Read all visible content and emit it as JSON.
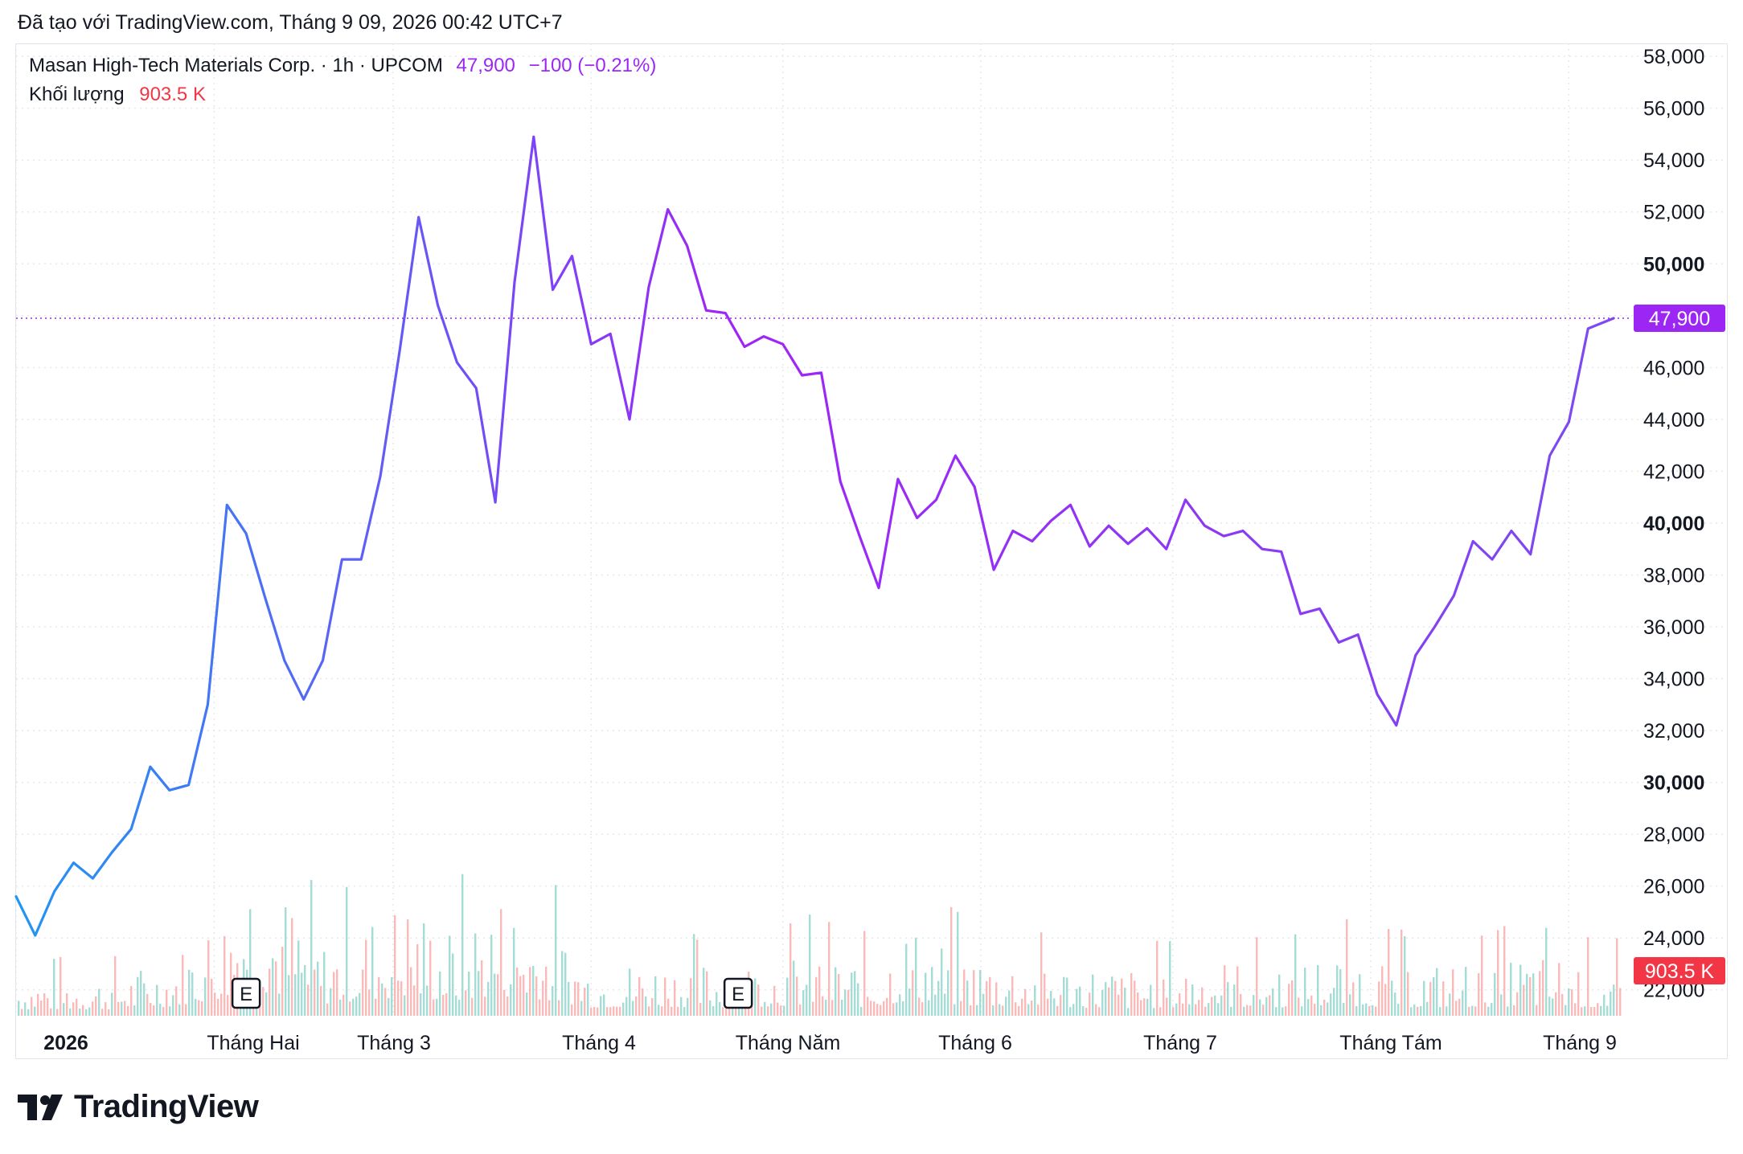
{
  "caption": "Đã tạo với TradingView.com, Tháng 9 09, 2026 00:42 UTC+7",
  "legend": {
    "symbol": "Masan High-Tech Materials Corp. · 1h · UPCOM",
    "last_price": "47,900",
    "change": "−100 (−0.21%)",
    "volume_label": "Khối lượng",
    "volume_value": "903.5 K"
  },
  "brand": "TradingView",
  "colors": {
    "line_start": "#2196f3",
    "line_mid": "#7b4bf0",
    "line_peak": "#a024f7",
    "price_badge": "#9c27f5",
    "volume_badge": "#f23645",
    "volume_up": "#8fd3cc",
    "volume_down": "#f7a9a9"
  },
  "chart_data": {
    "type": "line",
    "series": [
      {
        "x": [
          "2026-01-01",
          "2026-01-04",
          "2026-01-07",
          "2026-01-10",
          "2026-01-13",
          "2026-01-16",
          "2026-01-19",
          "2026-01-22",
          "2026-01-25",
          "2026-01-28",
          "2026-01-31",
          "2026-02-03",
          "2026-02-06",
          "2026-02-09",
          "2026-02-12",
          "2026-02-15",
          "2026-02-18",
          "2026-02-21",
          "2026-02-24",
          "2026-02-27",
          "2026-03-02",
          "2026-03-05",
          "2026-03-08",
          "2026-03-11",
          "2026-03-14",
          "2026-03-17",
          "2026-03-20",
          "2026-03-23",
          "2026-03-26",
          "2026-03-29",
          "2026-04-01",
          "2026-04-04",
          "2026-04-07",
          "2026-04-10",
          "2026-04-13",
          "2026-04-16",
          "2026-04-19",
          "2026-04-22",
          "2026-04-25",
          "2026-04-28",
          "2026-05-01",
          "2026-05-04",
          "2026-05-07",
          "2026-05-10",
          "2026-05-13",
          "2026-05-16",
          "2026-05-19",
          "2026-05-22",
          "2026-05-25",
          "2026-05-28",
          "2026-05-31",
          "2026-06-03",
          "2026-06-06",
          "2026-06-09",
          "2026-06-12",
          "2026-06-15",
          "2026-06-18",
          "2026-06-21",
          "2026-06-24",
          "2026-06-27",
          "2026-06-30",
          "2026-07-03",
          "2026-07-06",
          "2026-07-09",
          "2026-07-12",
          "2026-07-15",
          "2026-07-18",
          "2026-07-21",
          "2026-07-24",
          "2026-07-27",
          "2026-07-30",
          "2026-08-02",
          "2026-08-05",
          "2026-08-08",
          "2026-08-11",
          "2026-08-14",
          "2026-08-17",
          "2026-08-20",
          "2026-08-23",
          "2026-08-26",
          "2026-08-29",
          "2026-09-01",
          "2026-09-04",
          "2026-09-08"
        ],
        "y": [
          25600,
          24100,
          25800,
          26900,
          26300,
          27300,
          28200,
          30600,
          29700,
          29900,
          33000,
          40700,
          39600,
          37100,
          34700,
          33200,
          34700,
          38600,
          38600,
          41800,
          46600,
          51800,
          48400,
          46200,
          45200,
          40800,
          49300,
          54900,
          49000,
          50300,
          46900,
          47300,
          44000,
          49100,
          52100,
          50700,
          48200,
          48100,
          46800,
          47200,
          46900,
          45700,
          45800,
          41600,
          39500,
          37500,
          41700,
          40200,
          40900,
          42600,
          41400,
          38200,
          39700,
          39300,
          40100,
          40700,
          39100,
          39900,
          39200,
          39800,
          39000,
          40900,
          39900,
          39500,
          39700,
          39000,
          38900,
          36500,
          36700,
          35400,
          35700,
          33400,
          32200,
          34900,
          36000,
          37200,
          39300,
          38600,
          39700,
          38800,
          42600,
          43900,
          47500,
          47900
        ],
        "type": "line"
      }
    ],
    "x_tick_labels": [
      "2026",
      "Tháng Hai",
      "Tháng 3",
      "Tháng 4",
      "Tháng Năm",
      "Tháng 6",
      "Tháng 7",
      "Tháng Tám",
      "Tháng 9"
    ],
    "y_tick_labels": [
      "58,000",
      "56,000",
      "54,000",
      "52,000",
      "50,000",
      "48,000",
      "46,000",
      "44,000",
      "42,000",
      "40,000",
      "38,000",
      "36,000",
      "34,000",
      "32,000",
      "30,000",
      "28,000",
      "26,000",
      "24,000",
      "22,000"
    ],
    "y_range": [
      21000,
      58500
    ],
    "y_axis_side": "right",
    "last_price": 47900,
    "volume": {
      "x": [
        "2026-01-16",
        "2026-01-25",
        "2026-02-03",
        "2026-02-06",
        "2026-02-10",
        "2026-02-18",
        "2026-02-26",
        "2026-03-03",
        "2026-03-10",
        "2026-03-17",
        "2026-03-24",
        "2026-04-01",
        "2026-04-13",
        "2026-04-22",
        "2026-05-06",
        "2026-05-15",
        "2026-05-20",
        "2026-05-30",
        "2026-06-07",
        "2026-06-25",
        "2026-07-06",
        "2026-07-16",
        "2026-07-27",
        "2026-08-10",
        "2026-08-20",
        "2026-08-29",
        "2026-09-04"
      ],
      "y": [
        700,
        1000,
        2000,
        3100,
        2400,
        1300,
        1800,
        2100,
        1500,
        2200,
        1800,
        900,
        1000,
        900,
        1200,
        900,
        1600,
        1100,
        1000,
        800,
        1000,
        900,
        1100,
        900,
        1000,
        1100,
        903.5
      ],
      "unit": "K"
    },
    "earnings_markers": [
      "2026-02-06",
      "2026-04-24"
    ],
    "earnings_marker_label": "E",
    "grid": true
  }
}
